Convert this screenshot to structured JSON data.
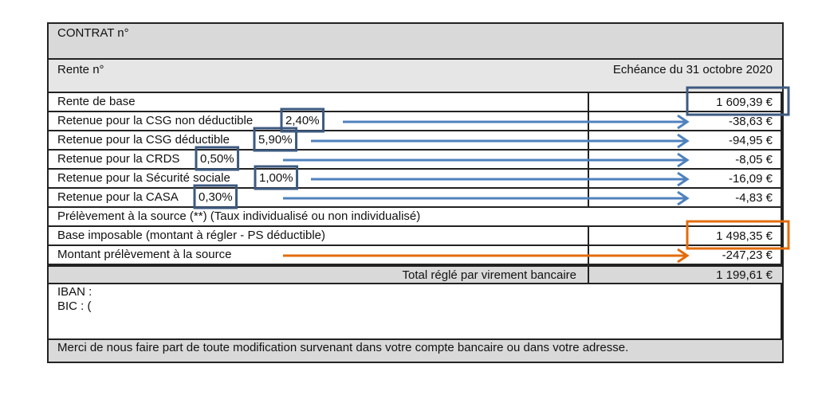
{
  "header": {
    "contract_label": "CONTRAT n°",
    "rente_label": "Rente n°",
    "due_date": "Echéance du 31 octobre 2020"
  },
  "rows": [
    {
      "label": "Rente de base",
      "rate": "",
      "amount": "1 609,39 €"
    },
    {
      "label": "Retenue pour la CSG non déductible",
      "rate": "2,40%",
      "amount": "-38,63 €"
    },
    {
      "label": "Retenue pour la CSG déductible",
      "rate": "5,90%",
      "amount": "-94,95 €"
    },
    {
      "label": "Retenue pour la CRDS",
      "rate": "0,50%",
      "amount": "-8,05 €"
    },
    {
      "label": "Retenue pour la Sécurité sociale",
      "rate": "1,00%",
      "amount": "-16,09 €"
    },
    {
      "label": "Retenue pour la CASA",
      "rate": "0,30%",
      "amount": "-4,83 €"
    }
  ],
  "withholding": {
    "section_label": "Prélèvement à la source (**) (Taux individualisé ou non individualisé)",
    "base_label": "Base imposable (montant à régler - PS déductible)",
    "base_amount": "1 498,35 €",
    "amount_label": "Montant prélèvement à la source",
    "amount": "-247,23 €"
  },
  "total": {
    "label": "Total réglé par virement bancaire",
    "amount": "1 199,61 €"
  },
  "bank": {
    "iban_label": "IBAN :",
    "bic_label": "BIC  : ("
  },
  "footer": {
    "note": "Merci de nous faire part de toute modification survenant dans votre compte bancaire ou dans votre adresse."
  },
  "colors": {
    "blue_highlight": "#3d5a80",
    "blue_arrow": "#4f81bd",
    "orange": "#e36c0a",
    "header_gray": "#d9d9d9"
  }
}
